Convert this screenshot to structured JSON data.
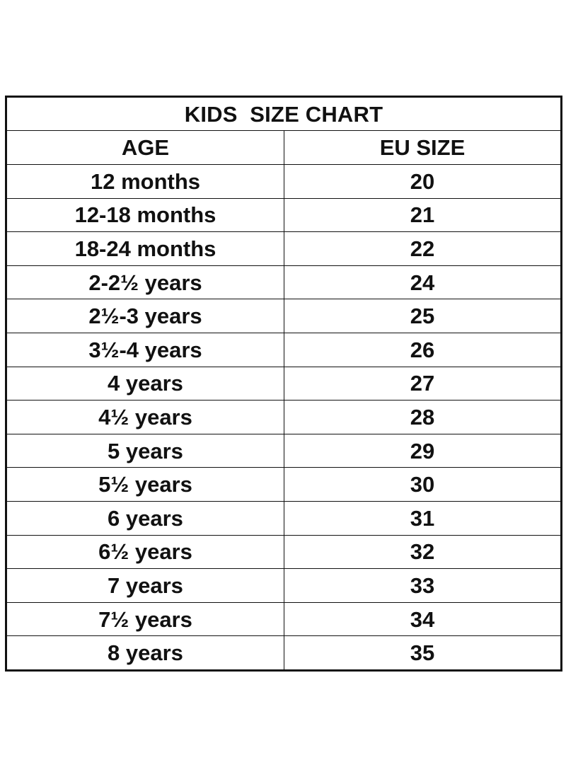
{
  "table": {
    "title": "KIDS  SIZE CHART",
    "headers": {
      "age": "AGE",
      "eu_size": "EU SIZE"
    },
    "rows": [
      {
        "age": "12 months",
        "eu": "20"
      },
      {
        "age": "12-18 months",
        "eu": "21"
      },
      {
        "age": "18-24 months",
        "eu": "22"
      },
      {
        "age": "2-2½ years",
        "eu": "24"
      },
      {
        "age": "2½-3 years",
        "eu": "25"
      },
      {
        "age": "3½-4 years",
        "eu": "26"
      },
      {
        "age": "4 years",
        "eu": "27"
      },
      {
        "age": "4½ years",
        "eu": "28"
      },
      {
        "age": "5 years",
        "eu": "29"
      },
      {
        "age": "5½ years",
        "eu": "30"
      },
      {
        "age": "6 years",
        "eu": "31"
      },
      {
        "age": "6½ years",
        "eu": "32"
      },
      {
        "age": "7 years",
        "eu": "33"
      },
      {
        "age": "7½ years",
        "eu": "34"
      },
      {
        "age": "8 years",
        "eu": "35"
      }
    ]
  },
  "colors": {
    "border": "#111111",
    "text": "#111111",
    "background": "#ffffff"
  }
}
